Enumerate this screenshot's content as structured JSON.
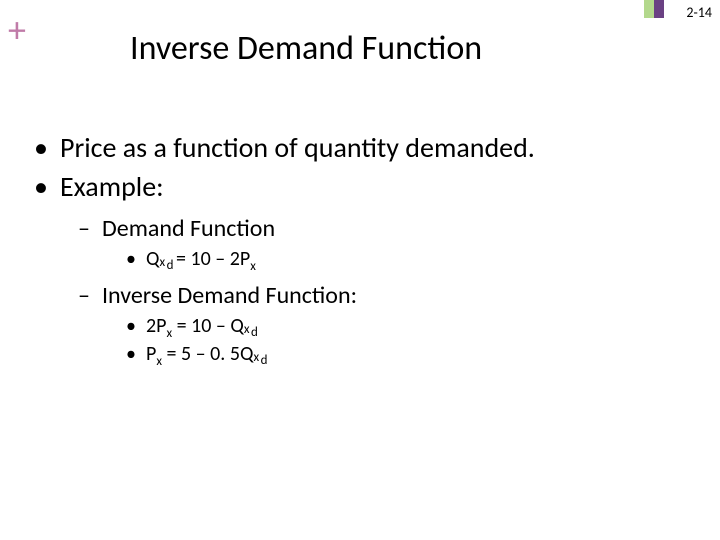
{
  "page_number": "2-14",
  "plus_color": "#c07ba8",
  "accent_bar_colors": [
    "#b3d88c",
    "#6a4183"
  ],
  "title": "Inverse Demand Function",
  "bullets": {
    "l1a": "Price as a function of quantity demanded.",
    "l1b": "Example:",
    "l2a": "Demand Function",
    "l2b": "Inverse Demand Function:",
    "eq1_pre": "Q",
    "eq1_subsup_sub": "x",
    "eq1_subsup_sup": "d",
    "eq1_post": " = 10 – 2P",
    "eq1_post_sub": "x",
    "eq2_pre": "2P",
    "eq2_pre_sub": "x",
    "eq2_mid": " = 10 – Q",
    "eq2_subsup_sub": "x",
    "eq2_subsup_sup": "d",
    "eq3_pre": "P",
    "eq3_pre_sub": "x",
    "eq3_mid": " = 5 – 0. 5Q",
    "eq3_subsup_sub": "x",
    "eq3_subsup_sup": "d"
  },
  "typography": {
    "title_fontsize_pt": 26,
    "level1_fontsize_pt": 21,
    "level2_fontsize_pt": 18,
    "level3_fontsize_pt": 15,
    "font_family": "Calibri",
    "text_color": "#000000",
    "background_color": "#ffffff"
  }
}
